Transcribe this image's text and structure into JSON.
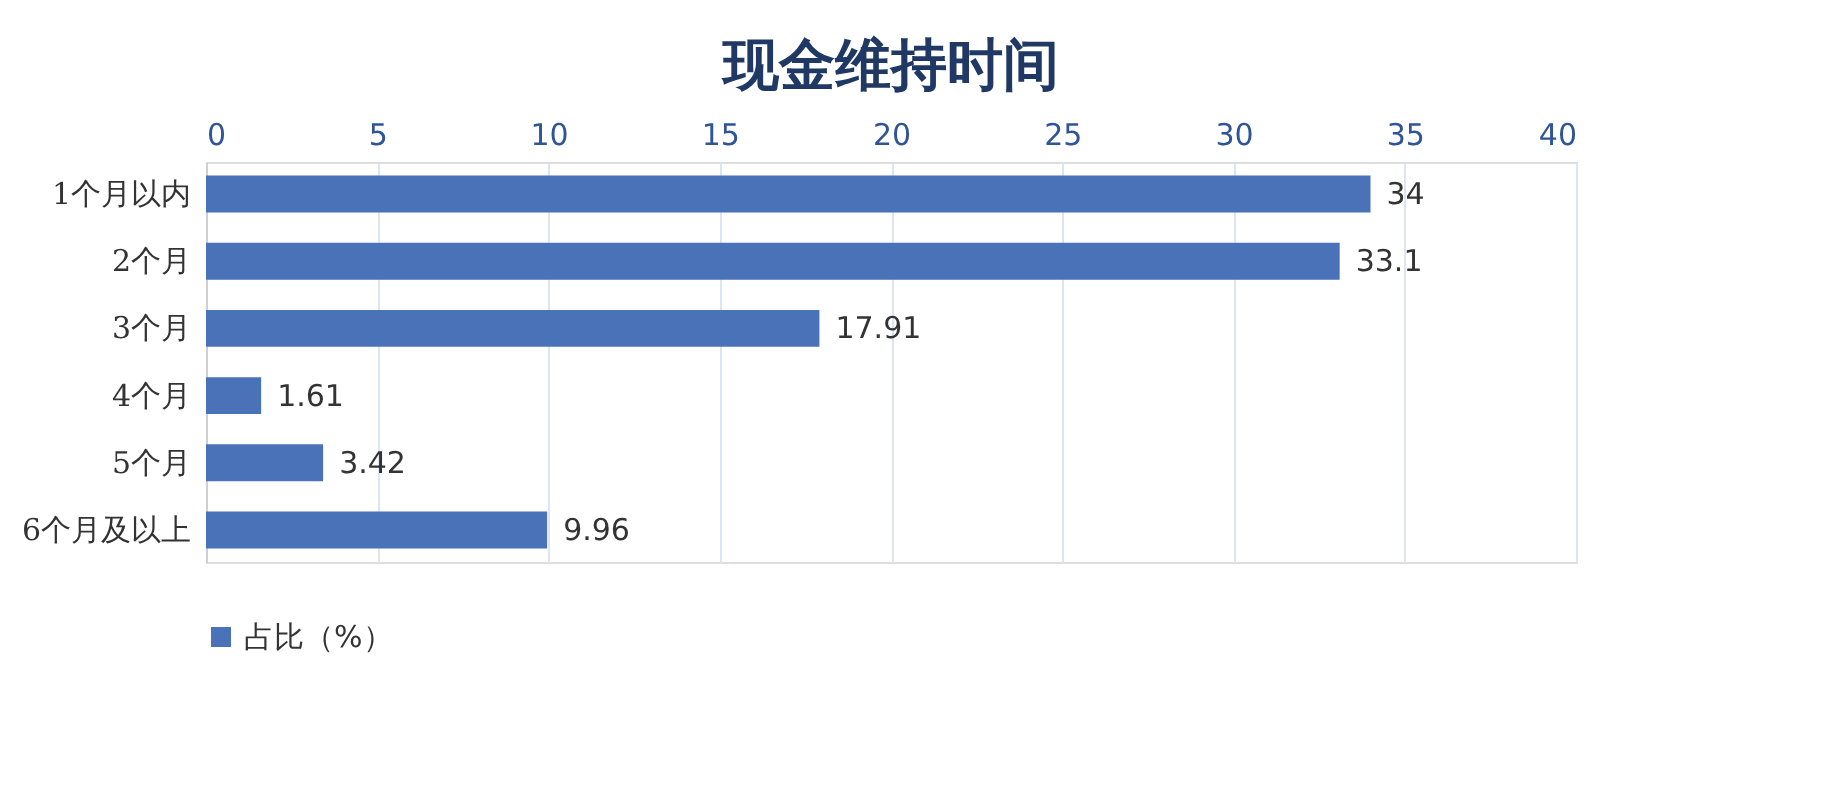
{
  "chart_data": {
    "type": "bar",
    "orientation": "horizontal",
    "title": "现金维持时间",
    "categories": [
      "1个月以内",
      "2个月",
      "3个月",
      "4个月",
      "5个月",
      "6个月及以上"
    ],
    "series": [
      {
        "name": "占比（%）",
        "color": "#4a72b8",
        "values": [
          34,
          33.1,
          17.91,
          1.61,
          3.42,
          9.96
        ]
      }
    ],
    "xlim": [
      0,
      40
    ],
    "xticks": [
      0,
      5,
      10,
      15,
      20,
      25,
      30,
      35,
      40
    ],
    "grid": "x",
    "legend": "bottom",
    "data_labels": true
  }
}
